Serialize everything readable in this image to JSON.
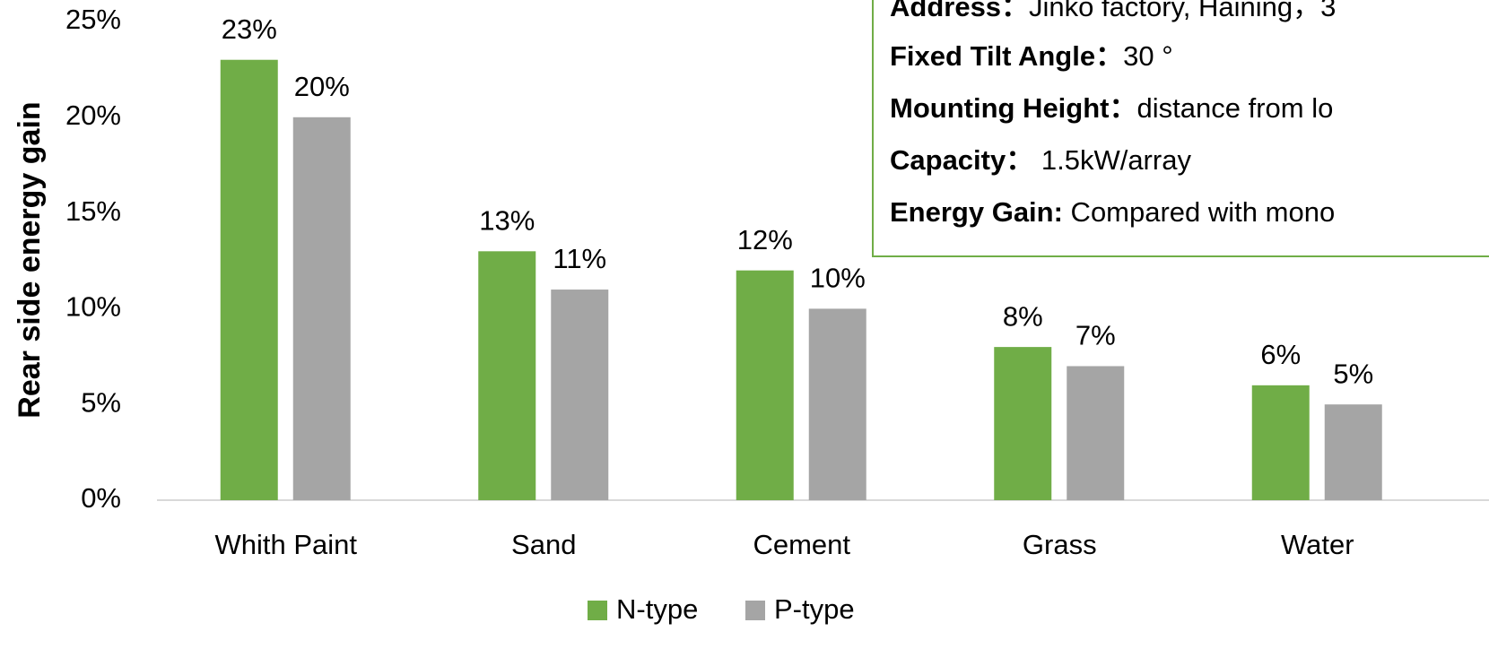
{
  "chart_data": {
    "type": "bar",
    "y_axis_label": "Rear side energy gain",
    "categories": [
      "Whith Paint",
      "Sand",
      "Cement",
      "Grass",
      "Water"
    ],
    "series": [
      {
        "name": "N-type",
        "color": "#70ad47",
        "values": [
          23,
          13,
          12,
          8,
          6
        ],
        "value_labels": [
          "23%",
          "13%",
          "12%",
          "8%",
          "6%"
        ]
      },
      {
        "name": "P-type",
        "color": "#a5a5a5",
        "values": [
          20,
          11,
          10,
          7,
          5
        ],
        "value_labels": [
          "20%",
          "11%",
          "10%",
          "7%",
          "5%"
        ]
      }
    ],
    "ylim": [
      0,
      25
    ],
    "yticks": [
      {
        "value": 0,
        "label": "0%"
      },
      {
        "value": 5,
        "label": "5%"
      },
      {
        "value": 10,
        "label": "10%"
      },
      {
        "value": 15,
        "label": "15%"
      },
      {
        "value": 20,
        "label": "20%"
      },
      {
        "value": 25,
        "label": "25%"
      }
    ],
    "grid": false,
    "legend": "bottom",
    "info_box": [
      {
        "key": "Address：",
        "value": "Jinko factory, Haining，3"
      },
      {
        "key": "Fixed Tilt Angle：",
        "value": "30 °"
      },
      {
        "key": "Mounting Height：",
        "value": "distance from lo"
      },
      {
        "key": "Capacity：",
        "value": " 1.5kW/array"
      },
      {
        "key": "Energy Gain:",
        "value": " Compared with mono"
      }
    ]
  }
}
